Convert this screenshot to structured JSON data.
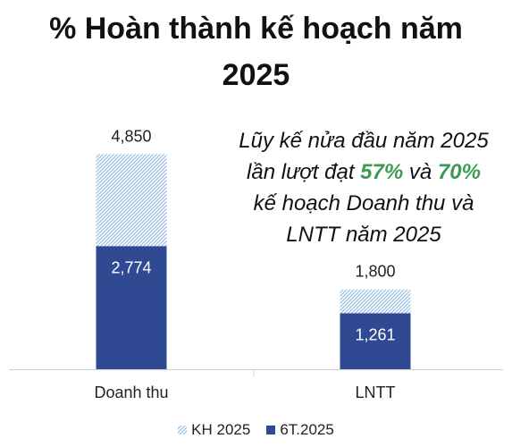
{
  "title": {
    "line1": "% Hoàn thành kế hoạch năm",
    "line2": "2025"
  },
  "annotation": {
    "line1": "Lũy kế nửa đầu năm 2025",
    "line2_prefix": "lần lượt đạt ",
    "pct1": "57%",
    "connector": " và ",
    "pct2": "70%",
    "line3": "kế hoạch Doanh thu và",
    "line4": "LNTT năm 2025",
    "highlight_color": "#3d9a52"
  },
  "colors": {
    "plan": "#9cc3e4",
    "actual": "#2f4a93",
    "axis": "#d0d0d0"
  },
  "chart_data": {
    "type": "bar",
    "categories": [
      "Doanh thu",
      "LNTT"
    ],
    "series": [
      {
        "name": "KH 2025",
        "values": [
          4850,
          1800
        ],
        "labels": [
          "4,850",
          "1,800"
        ],
        "pattern": "hatched"
      },
      {
        "name": "6T.2025",
        "values": [
          2774,
          1261
        ],
        "labels": [
          "2,774",
          "1,261"
        ],
        "pattern": "solid"
      }
    ],
    "ylim": [
      0,
      5200
    ],
    "legend_position": "bottom",
    "grid": false
  }
}
